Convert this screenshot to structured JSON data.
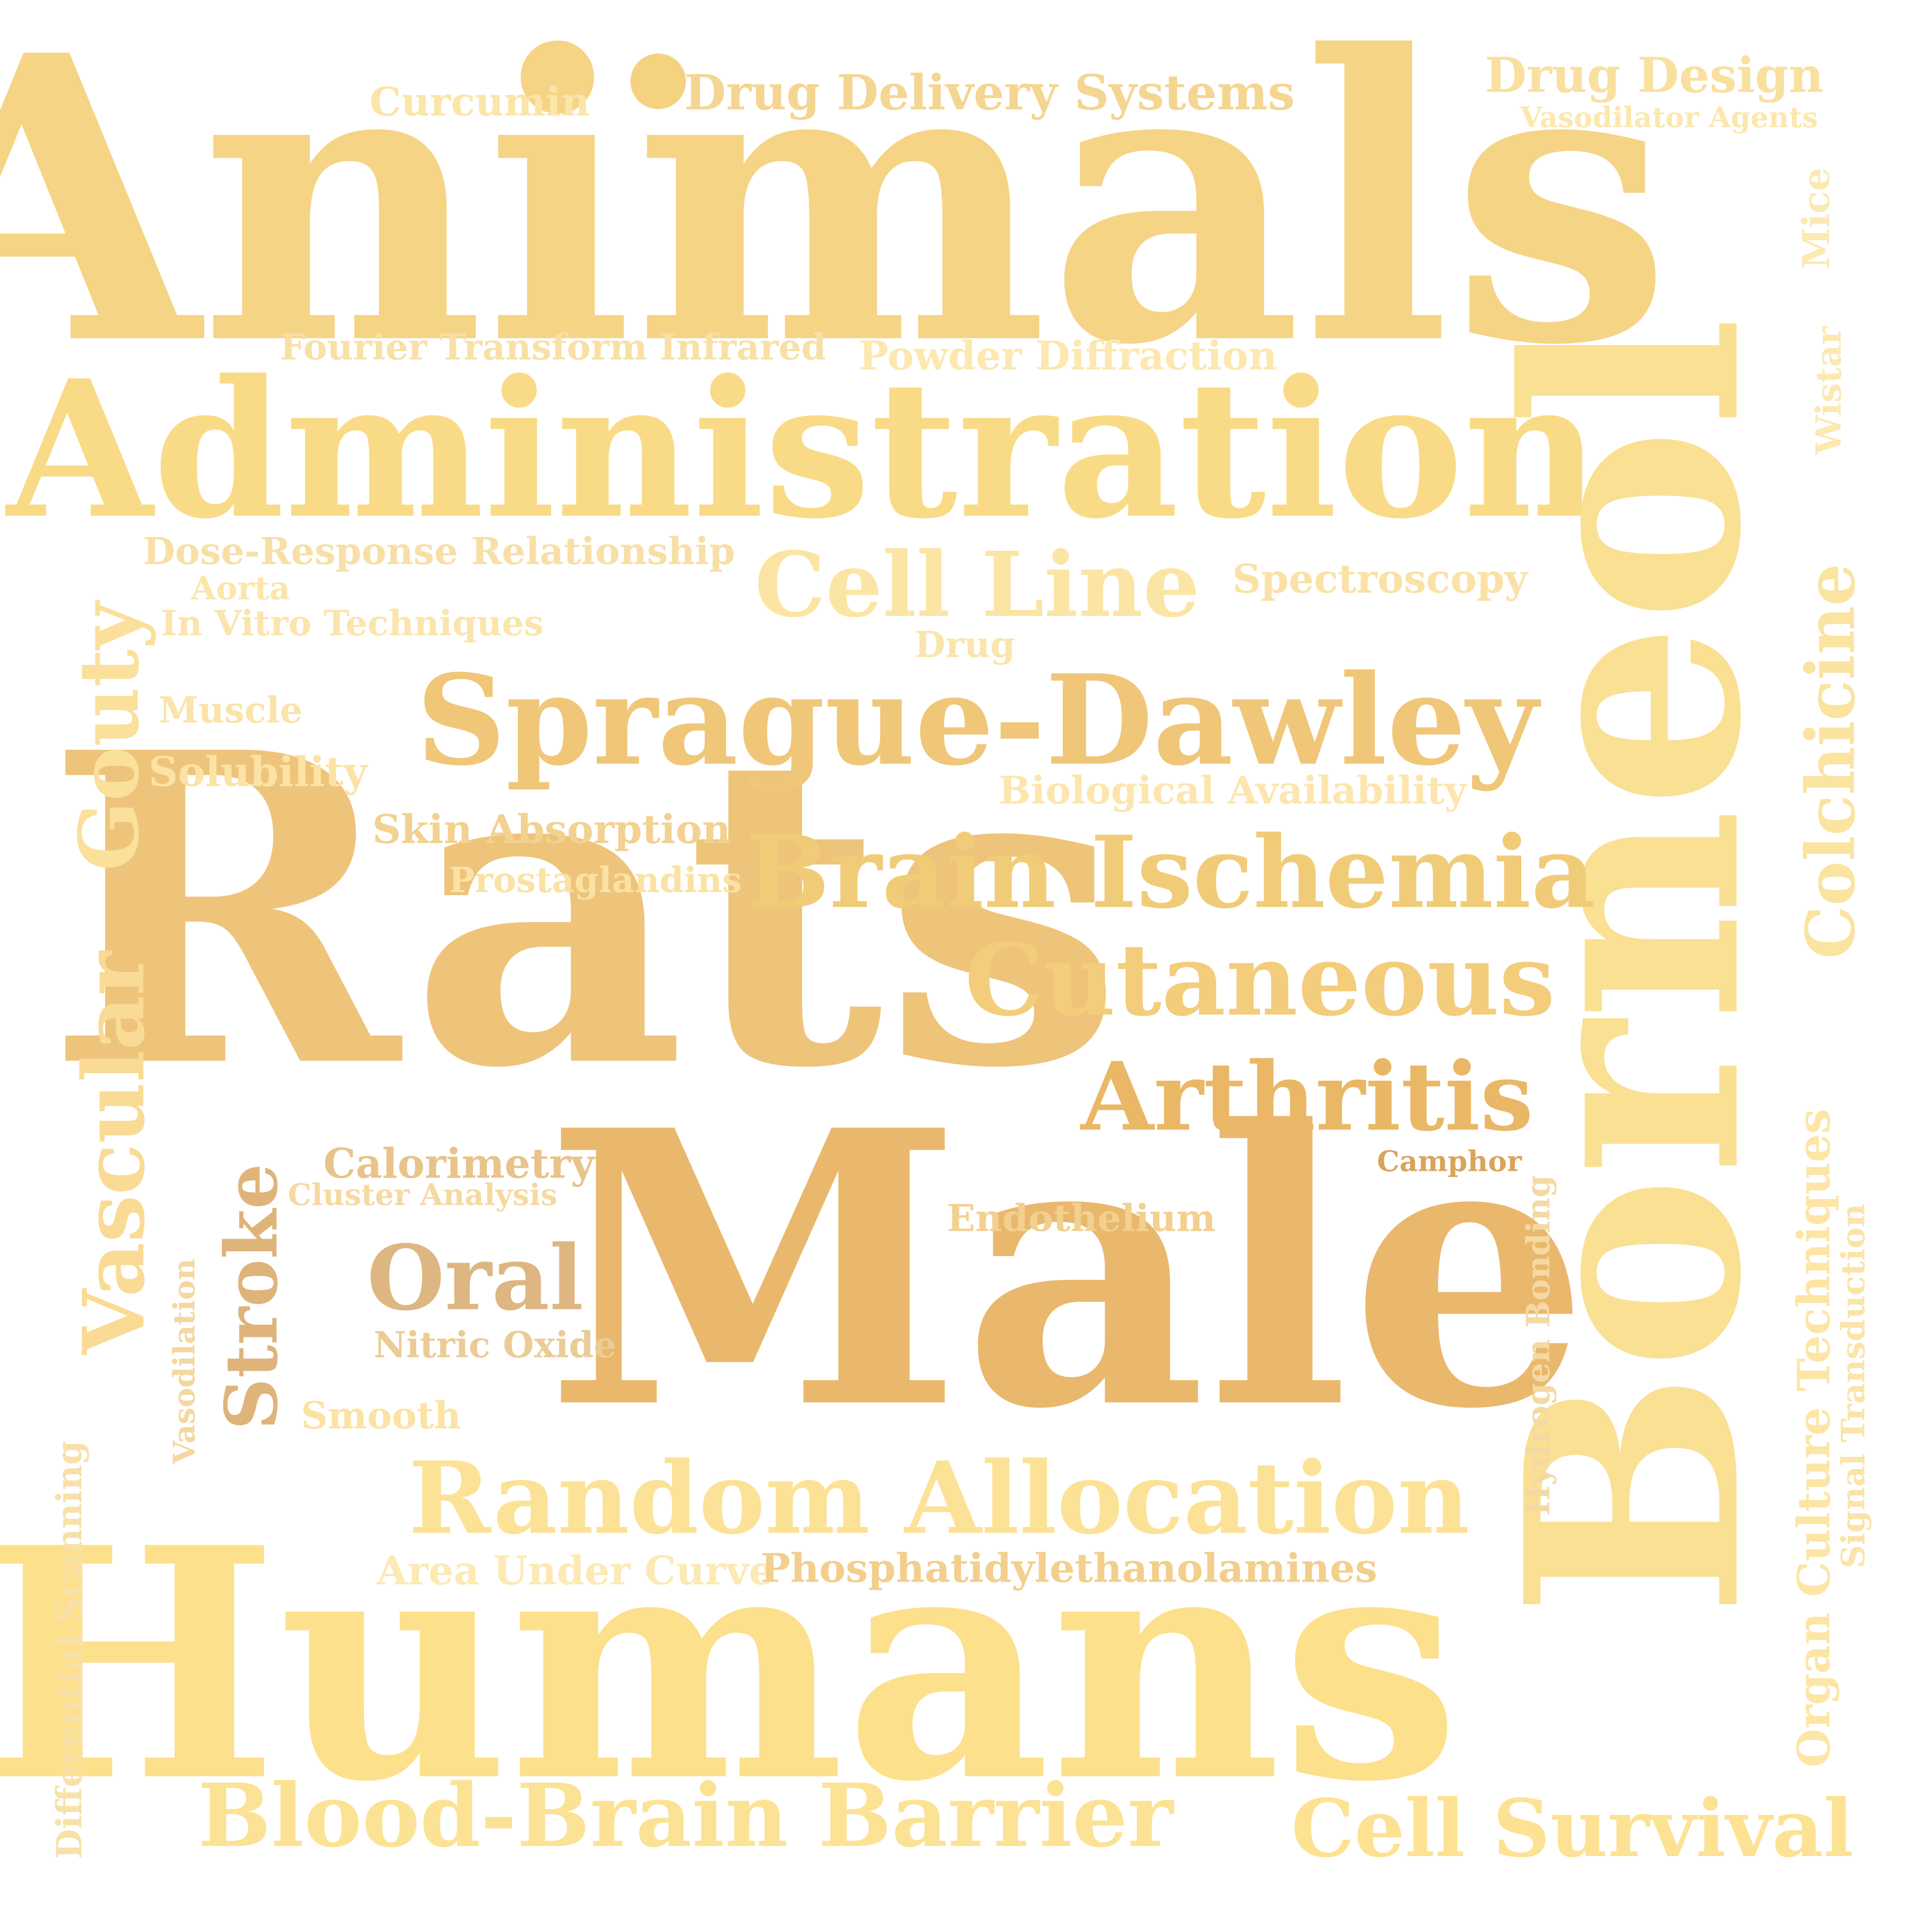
{
  "words": {
    "animals": {
      "text": "Animals",
      "color": "#f6d485"
    },
    "administration": {
      "text": "Administration",
      "color": "#f9db87"
    },
    "rats": {
      "text": "Rats",
      "color": "#eec47b"
    },
    "male": {
      "text": "Male",
      "color": "#e9b86d"
    },
    "humans": {
      "text": "Humans",
      "color": "#fde08c"
    },
    "borneol": {
      "text": "Borneol",
      "color": "#fae093"
    },
    "sprague_dawley": {
      "text": "Sprague-Dawley",
      "color": "#f0c679"
    },
    "brain_ischemia": {
      "text": "Brain Ischemia",
      "color": "#f1cc78"
    },
    "cutaneous": {
      "text": "Cutaneous",
      "color": "#f3cd7c"
    },
    "arthritis": {
      "text": "Arthritis",
      "color": "#e9b765"
    },
    "random_allocation": {
      "text": "Random Allocation",
      "color": "#fce296"
    },
    "cell_line": {
      "text": "Cell Line",
      "color": "#fbe5a4"
    },
    "blood_brain_barrier": {
      "text": "Blood-Brain Barrier",
      "color": "#fce294"
    },
    "cell_survival": {
      "text": "Cell Survival",
      "color": "#fde293"
    },
    "gouty": {
      "text": "Gouty",
      "color": "#fbe09c"
    },
    "vascular": {
      "text": "Vascular",
      "color": "#fadb95"
    },
    "stroke": {
      "text": "Stroke",
      "color": "#deb47b"
    },
    "oral": {
      "text": "Oral",
      "color": "#ddb682"
    },
    "colchicine": {
      "text": "Colchicine",
      "color": "#fbe3a0"
    },
    "organ_culture": {
      "text": "Organ Culture Techniques",
      "color": "#fde5a5"
    },
    "hydrogen_bonding": {
      "text": "Hydrogen Bonding",
      "color": "#f4d9a4"
    },
    "signal_transduction": {
      "text": "Signal Transduction",
      "color": "#fbe4aa"
    },
    "mice": {
      "text": "Mice",
      "color": "#fce9b2"
    },
    "wistar": {
      "text": "Wistar",
      "color": "#fce9b2"
    },
    "differential_scanning": {
      "text": "Differential Scanning",
      "color": "#f8e1a8"
    },
    "vasodilation": {
      "text": "Vasodilation",
      "color": "#f5d7a0"
    },
    "drug_delivery": {
      "text": "Drug Delivery Systems",
      "color": "#f5d592"
    },
    "curcumin": {
      "text": "Curcumin",
      "color": "#fbe5a8"
    },
    "drug_design": {
      "text": "Drug Design",
      "color": "#f9e09f"
    },
    "vasodilator_agents": {
      "text": "Vasodilator Agents",
      "color": "#fce7ae"
    },
    "ftir": {
      "text": "Fourier Transform Infrared",
      "color": "#f8e0a6"
    },
    "powder_diffraction": {
      "text": "Powder Diffraction",
      "color": "#fce8b0"
    },
    "dose_response": {
      "text": "Dose-Response Relationship",
      "color": "#f8dfa6"
    },
    "aorta": {
      "text": "Aorta",
      "color": "#fbe6ab"
    },
    "in_vitro": {
      "text": "In Vitro Techniques",
      "color": "#fbe5ab"
    },
    "spectroscopy": {
      "text": "Spectroscopy",
      "color": "#fae1a5"
    },
    "drug": {
      "text": "Drug",
      "color": "#fae5ad"
    },
    "muscle": {
      "text": "Muscle",
      "color": "#fbe3a9"
    },
    "solubility": {
      "text": "Solubility",
      "color": "#fce3a5"
    },
    "biological_availability": {
      "text": "Biological Availability",
      "color": "#fde6ae"
    },
    "skin_absorption": {
      "text": "Skin Absorption",
      "color": "#f2d191"
    },
    "prostaglandins": {
      "text": "Prostaglandins",
      "color": "#fbe2a4"
    },
    "calorimetry": {
      "text": "Calorimetry",
      "color": "#e8c38a"
    },
    "cluster_analysis": {
      "text": "Cluster Analysis",
      "color": "#f6d9a1"
    },
    "camphor": {
      "text": "Camphor",
      "color": "#d9a45c"
    },
    "endothelium": {
      "text": "Endothelium",
      "color": "#f2d08f"
    },
    "nitric_oxide": {
      "text": "Nitric Oxide",
      "color": "#ebcc96"
    },
    "smooth": {
      "text": "Smooth",
      "color": "#fbe3a4"
    },
    "area_under_curve": {
      "text": "Area Under Curve",
      "color": "#fde9b4"
    },
    "phosphatidyl": {
      "text": "Phosphatidylethanolamines",
      "color": "#f3cf8d"
    }
  },
  "decor": {
    "dot_color": "#f4d27f"
  }
}
